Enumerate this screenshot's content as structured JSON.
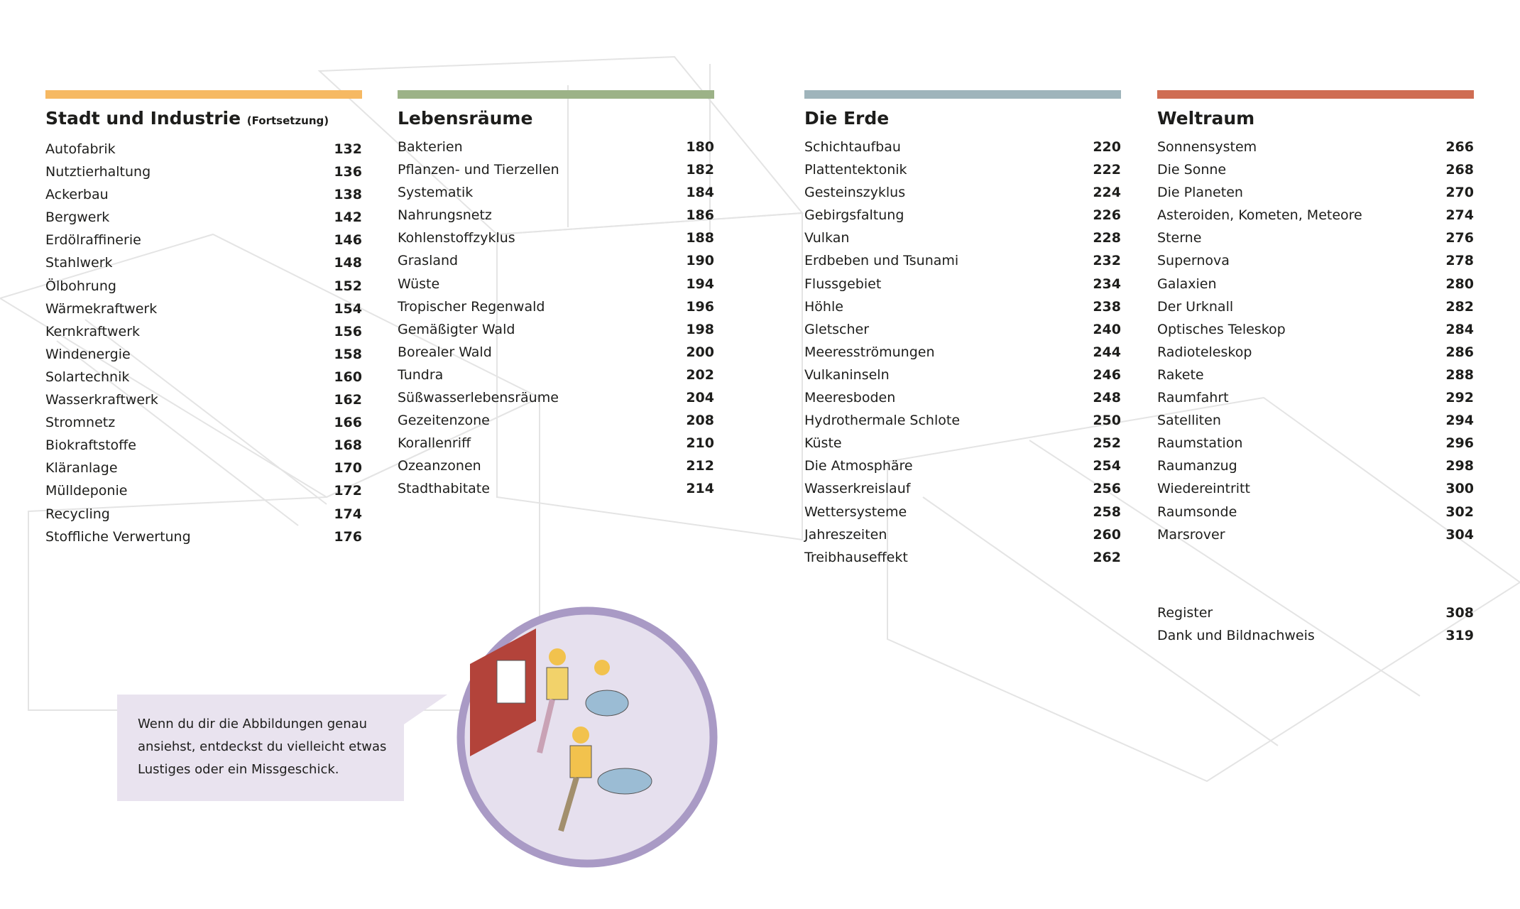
{
  "sections": [
    {
      "title": "Stadt und Industrie",
      "subtitle": "(Fortsetzung)",
      "color": "#f6b963",
      "entries": [
        {
          "name": "Autofabrik",
          "page": 132
        },
        {
          "name": "Nutztierhaltung",
          "page": 136
        },
        {
          "name": "Ackerbau",
          "page": 138
        },
        {
          "name": "Bergwerk",
          "page": 142
        },
        {
          "name": "Erdölraffinerie",
          "page": 146
        },
        {
          "name": "Stahlwerk",
          "page": 148
        },
        {
          "name": "Ölbohrung",
          "page": 152
        },
        {
          "name": "Wärmekraftwerk",
          "page": 154
        },
        {
          "name": "Kernkraftwerk",
          "page": 156
        },
        {
          "name": "Windenergie",
          "page": 158
        },
        {
          "name": "Solartechnik",
          "page": 160
        },
        {
          "name": "Wasserkraftwerk",
          "page": 162
        },
        {
          "name": "Stromnetz",
          "page": 166
        },
        {
          "name": "Biokraftstoffe",
          "page": 168
        },
        {
          "name": "Kläranlage",
          "page": 170
        },
        {
          "name": "Mülldeponie",
          "page": 172
        },
        {
          "name": "Recycling",
          "page": 174
        },
        {
          "name": "Stoffliche Verwertung",
          "page": 176
        }
      ]
    },
    {
      "title": "Lebensräume",
      "color": "#9cb287",
      "entries": [
        {
          "name": "Bakterien",
          "page": 180
        },
        {
          "name": "Pflanzen- und Tierzellen",
          "page": 182
        },
        {
          "name": "Systematik",
          "page": 184
        },
        {
          "name": "Nahrungsnetz",
          "page": 186
        },
        {
          "name": "Kohlenstoffzyklus",
          "page": 188
        },
        {
          "name": "Grasland",
          "page": 190
        },
        {
          "name": "Wüste",
          "page": 194
        },
        {
          "name": "Tropischer Regenwald",
          "page": 196
        },
        {
          "name": "Gemäßigter Wald",
          "page": 198
        },
        {
          "name": "Borealer Wald",
          "page": 200
        },
        {
          "name": "Tundra",
          "page": 202
        },
        {
          "name": "Süßwasserlebensräume",
          "page": 204
        },
        {
          "name": "Gezeitenzone",
          "page": 208
        },
        {
          "name": "Korallenriff",
          "page": 210
        },
        {
          "name": "Ozeanzonen",
          "page": 212
        },
        {
          "name": "Stadthabitate",
          "page": 214
        }
      ]
    },
    {
      "title": "Die Erde",
      "color": "#9fb4bb",
      "entries": [
        {
          "name": "Schichtaufbau",
          "page": 220
        },
        {
          "name": "Plattentektonik",
          "page": 222
        },
        {
          "name": "Gesteinszyklus",
          "page": 224
        },
        {
          "name": "Gebirgsfaltung",
          "page": 226
        },
        {
          "name": "Vulkan",
          "page": 228
        },
        {
          "name": "Erdbeben und Tsunami",
          "page": 232
        },
        {
          "name": "Flussgebiet",
          "page": 234
        },
        {
          "name": "Höhle",
          "page": 238
        },
        {
          "name": "Gletscher",
          "page": 240
        },
        {
          "name": "Meeresströmungen",
          "page": 244
        },
        {
          "name": "Vulkaninseln",
          "page": 246
        },
        {
          "name": "Meeresboden",
          "page": 248
        },
        {
          "name": "Hydrothermale Schlote",
          "page": 250
        },
        {
          "name": "Küste",
          "page": 252
        },
        {
          "name": "Die Atmosphäre",
          "page": 254
        },
        {
          "name": "Wasserkreislauf",
          "page": 256
        },
        {
          "name": "Wettersysteme",
          "page": 258
        },
        {
          "name": "Jahreszeiten",
          "page": 260
        },
        {
          "name": "Treibhauseffekt",
          "page": 262
        }
      ]
    },
    {
      "title": "Weltraum",
      "color": "#cf6d53",
      "entries": [
        {
          "name": "Sonnensystem",
          "page": 266
        },
        {
          "name": "Die Sonne",
          "page": 268
        },
        {
          "name": "Die Planeten",
          "page": 270
        },
        {
          "name": "Asteroiden, Kometen, Meteore",
          "page": 274
        },
        {
          "name": "Sterne",
          "page": 276
        },
        {
          "name": "Supernova",
          "page": 278
        },
        {
          "name": "Galaxien",
          "page": 280
        },
        {
          "name": "Der Urknall",
          "page": 282
        },
        {
          "name": "Optisches Teleskop",
          "page": 284
        },
        {
          "name": "Radioteleskop",
          "page": 286
        },
        {
          "name": "Rakete",
          "page": 288
        },
        {
          "name": "Raumfahrt",
          "page": 292
        },
        {
          "name": "Satelliten",
          "page": 294
        },
        {
          "name": "Raumstation",
          "page": 296
        },
        {
          "name": "Raumanzug",
          "page": 298
        },
        {
          "name": "Wiedereintritt",
          "page": 300
        },
        {
          "name": "Raumsonde",
          "page": 302
        },
        {
          "name": "Marsrover",
          "page": 304
        }
      ],
      "appendix": [
        {
          "name": "Register",
          "page": 308
        },
        {
          "name": "Dank und Bildnachweis",
          "page": 319
        }
      ]
    }
  ],
  "callout": {
    "lines": [
      "Wenn du dir die Abbildungen genau",
      "ansiehst, entdeckst du vielleicht etwas",
      "Lustiges oder ein Missgeschick."
    ]
  }
}
